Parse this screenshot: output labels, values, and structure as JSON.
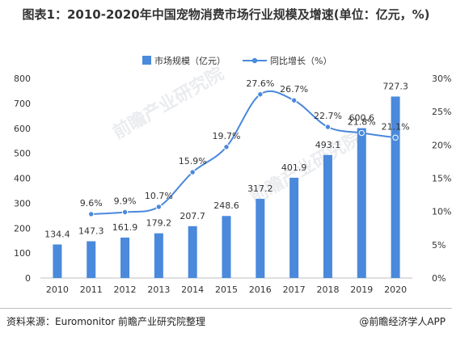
{
  "title": "图表1：2010-2020年中国宠物消费市场行业规模及增速(单位：亿元，%)",
  "source": "资料来源：Euromonitor 前瞻产业研究院整理",
  "credit": "@前瞻经济学人APP",
  "watermark": "前瞻产业研究院",
  "colors": {
    "bar": "#4a89dc",
    "line": "#4a89dc",
    "grid": "#e3e3e3",
    "axis": "#bfbfbf",
    "text": "#333333"
  },
  "chart_data": {
    "type": "bar+line",
    "categories": [
      "2010",
      "2011",
      "2012",
      "2013",
      "2014",
      "2015",
      "2016",
      "2017",
      "2018",
      "2019",
      "2020"
    ],
    "series": [
      {
        "name": "市场规模（亿元）",
        "type": "bar",
        "axis": "left",
        "values": [
          134.4,
          147.3,
          161.9,
          179.2,
          207.7,
          248.6,
          317.2,
          401.9,
          493.1,
          600.6,
          727.3
        ],
        "labels": [
          "134.4",
          "147.3",
          "161.9",
          "179.2",
          "207.7",
          "248.6",
          "317.2",
          "401.9",
          "493.1",
          "600.6",
          "727.3"
        ]
      },
      {
        "name": "同比增长（%）",
        "type": "line",
        "axis": "right",
        "values": [
          null,
          9.6,
          9.9,
          10.7,
          15.9,
          19.7,
          27.6,
          26.7,
          22.7,
          21.8,
          21.1
        ],
        "labels": [
          "",
          "9.6%",
          "9.9%",
          "10.7%",
          "15.9%",
          "19.7%",
          "27.6%",
          "26.7%",
          "22.7%",
          "21.8%",
          "21.1%"
        ]
      }
    ],
    "yleft": {
      "min": 0,
      "max": 800,
      "ticks": [
        "0",
        "100",
        "200",
        "300",
        "400",
        "500",
        "600",
        "700",
        "800"
      ]
    },
    "yright": {
      "min": 0,
      "max": 30,
      "ticks": [
        "0%",
        "5%",
        "10%",
        "15%",
        "20%",
        "25%",
        "30%"
      ]
    },
    "legend_position": "top-center",
    "grid": false
  }
}
